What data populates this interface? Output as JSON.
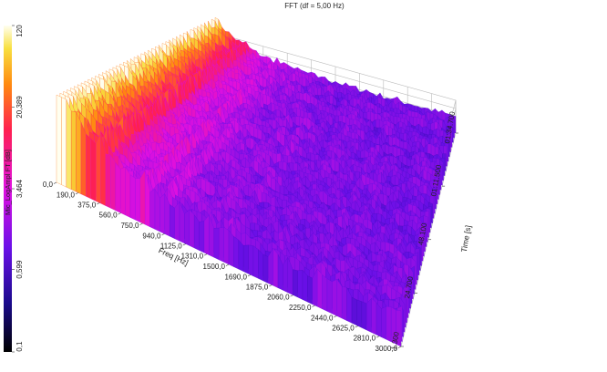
{
  "chart_data": {
    "type": "waterfall3d",
    "title": "FFT (df = 5,00 Hz)",
    "x_label": "Freq [Hz]",
    "y_label": "Time [s]",
    "colorbar_label": "Mic_LogAmpl FT [dB]",
    "xlim": [
      0,
      3000
    ],
    "xticks": [
      {
        "value": 0,
        "label": "0,0"
      },
      {
        "value": 190,
        "label": "190,0"
      },
      {
        "value": 375,
        "label": "375,0"
      },
      {
        "value": 560,
        "label": "560,0"
      },
      {
        "value": 750,
        "label": "750,0"
      },
      {
        "value": 940,
        "label": "940,0"
      },
      {
        "value": 1125,
        "label": "1125,0"
      },
      {
        "value": 1310,
        "label": "1310,0"
      },
      {
        "value": 1500,
        "label": "1500,0"
      },
      {
        "value": 1690,
        "label": "1690,0"
      },
      {
        "value": 1875,
        "label": "1875,0"
      },
      {
        "value": 2060,
        "label": "2060,0"
      },
      {
        "value": 2250,
        "label": "2250,0"
      },
      {
        "value": 2440,
        "label": "2440,0"
      },
      {
        "value": 2625,
        "label": "2625,0"
      },
      {
        "value": 2810,
        "label": "2810,0"
      },
      {
        "value": 3000,
        "label": "3000,0"
      }
    ],
    "ylim": [
      1.3,
      94.7
    ],
    "yticks": [
      {
        "value": 1.3,
        "label": "1.300"
      },
      {
        "value": 24.7,
        "label": "24.700"
      },
      {
        "value": 48.1,
        "label": "48.100"
      },
      {
        "value": 71.5,
        "label": "01:11.500"
      },
      {
        "value": 94.7,
        "label": "01:34.700"
      }
    ],
    "clim": [
      0.1,
      120
    ],
    "clog": true,
    "cticks": [
      {
        "value": 0.1,
        "label": "0,1"
      },
      {
        "value": 0.599,
        "label": "0,599"
      },
      {
        "value": 3.464,
        "label": "3,464"
      },
      {
        "value": 20.389,
        "label": "20,389"
      },
      120
    ]
  }
}
